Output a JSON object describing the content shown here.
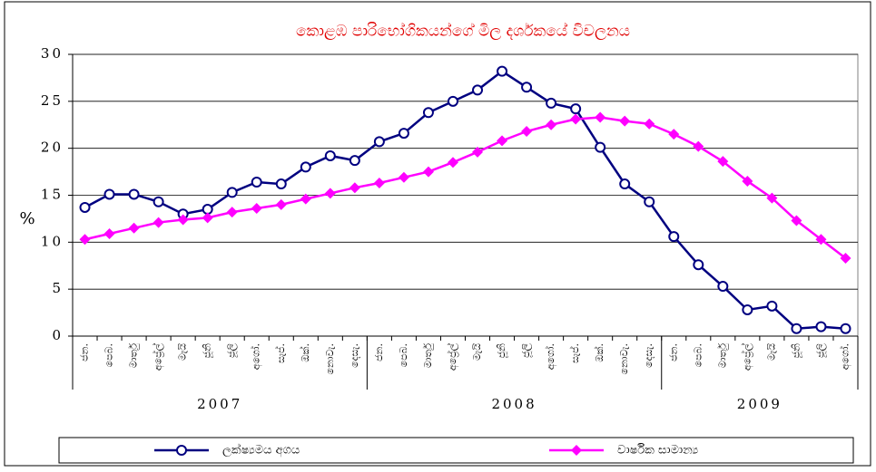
{
  "chart_data": {
    "type": "line",
    "title": "කොළඹ පාරිභෝගිකයන්ගේ මිල දර්ශකයේ විචලනය",
    "y_label": "%",
    "groups": [
      {
        "label": "2007",
        "categories": [
          "ජන.",
          "පෙබ.",
          "මාර්තු",
          "අප්‍රේල්",
          "මැයි",
          "ජූනි",
          "ජූලි",
          "අගෝ.",
          "සැප්.",
          "ඔක්.",
          "නොවැ.",
          "දෙසැ."
        ]
      },
      {
        "label": "2008",
        "categories": [
          "ජන.",
          "පෙබ.",
          "මාර්තු",
          "අප්‍රේල්",
          "මැයි",
          "ජූනි",
          "ජූලි",
          "අගෝ.",
          "සැප්.",
          "ඔක්.",
          "නොවැ.",
          "දෙසැ."
        ]
      },
      {
        "label": "2009",
        "categories": [
          "ජන.",
          "පෙබ.",
          "මාර්තු",
          "අප්‍රේල්",
          "මැයි",
          "ජූනි",
          "ජූලි",
          "අගෝ."
        ]
      }
    ],
    "series": [
      {
        "name": "ලක්ෂ්‍යමය අගය",
        "color": "#000080",
        "marker": "circle",
        "values": [
          13.7,
          15.1,
          15.1,
          14.3,
          13.0,
          13.5,
          15.3,
          16.4,
          16.2,
          18.0,
          19.2,
          18.7,
          20.7,
          21.6,
          23.8,
          25.0,
          26.2,
          28.2,
          26.5,
          24.8,
          24.2,
          20.1,
          16.2,
          14.3,
          10.6,
          7.6,
          5.3,
          2.8,
          3.2,
          0.8,
          1.0,
          0.8
        ]
      },
      {
        "name": "වාර්ෂික සාමාන්‍ය",
        "color": "#ff00ff",
        "marker": "diamond",
        "values": [
          10.3,
          10.9,
          11.5,
          12.1,
          12.4,
          12.6,
          13.2,
          13.6,
          14.0,
          14.6,
          15.2,
          15.8,
          16.3,
          16.9,
          17.5,
          18.5,
          19.6,
          20.8,
          21.8,
          22.5,
          23.1,
          23.3,
          22.9,
          22.6,
          21.5,
          20.2,
          18.6,
          16.5,
          14.7,
          12.3,
          10.3,
          8.3
        ]
      }
    ],
    "ylim": [
      0,
      30
    ],
    "yticks": [
      0,
      5,
      10,
      15,
      20,
      25,
      30
    ],
    "grid": true
  }
}
